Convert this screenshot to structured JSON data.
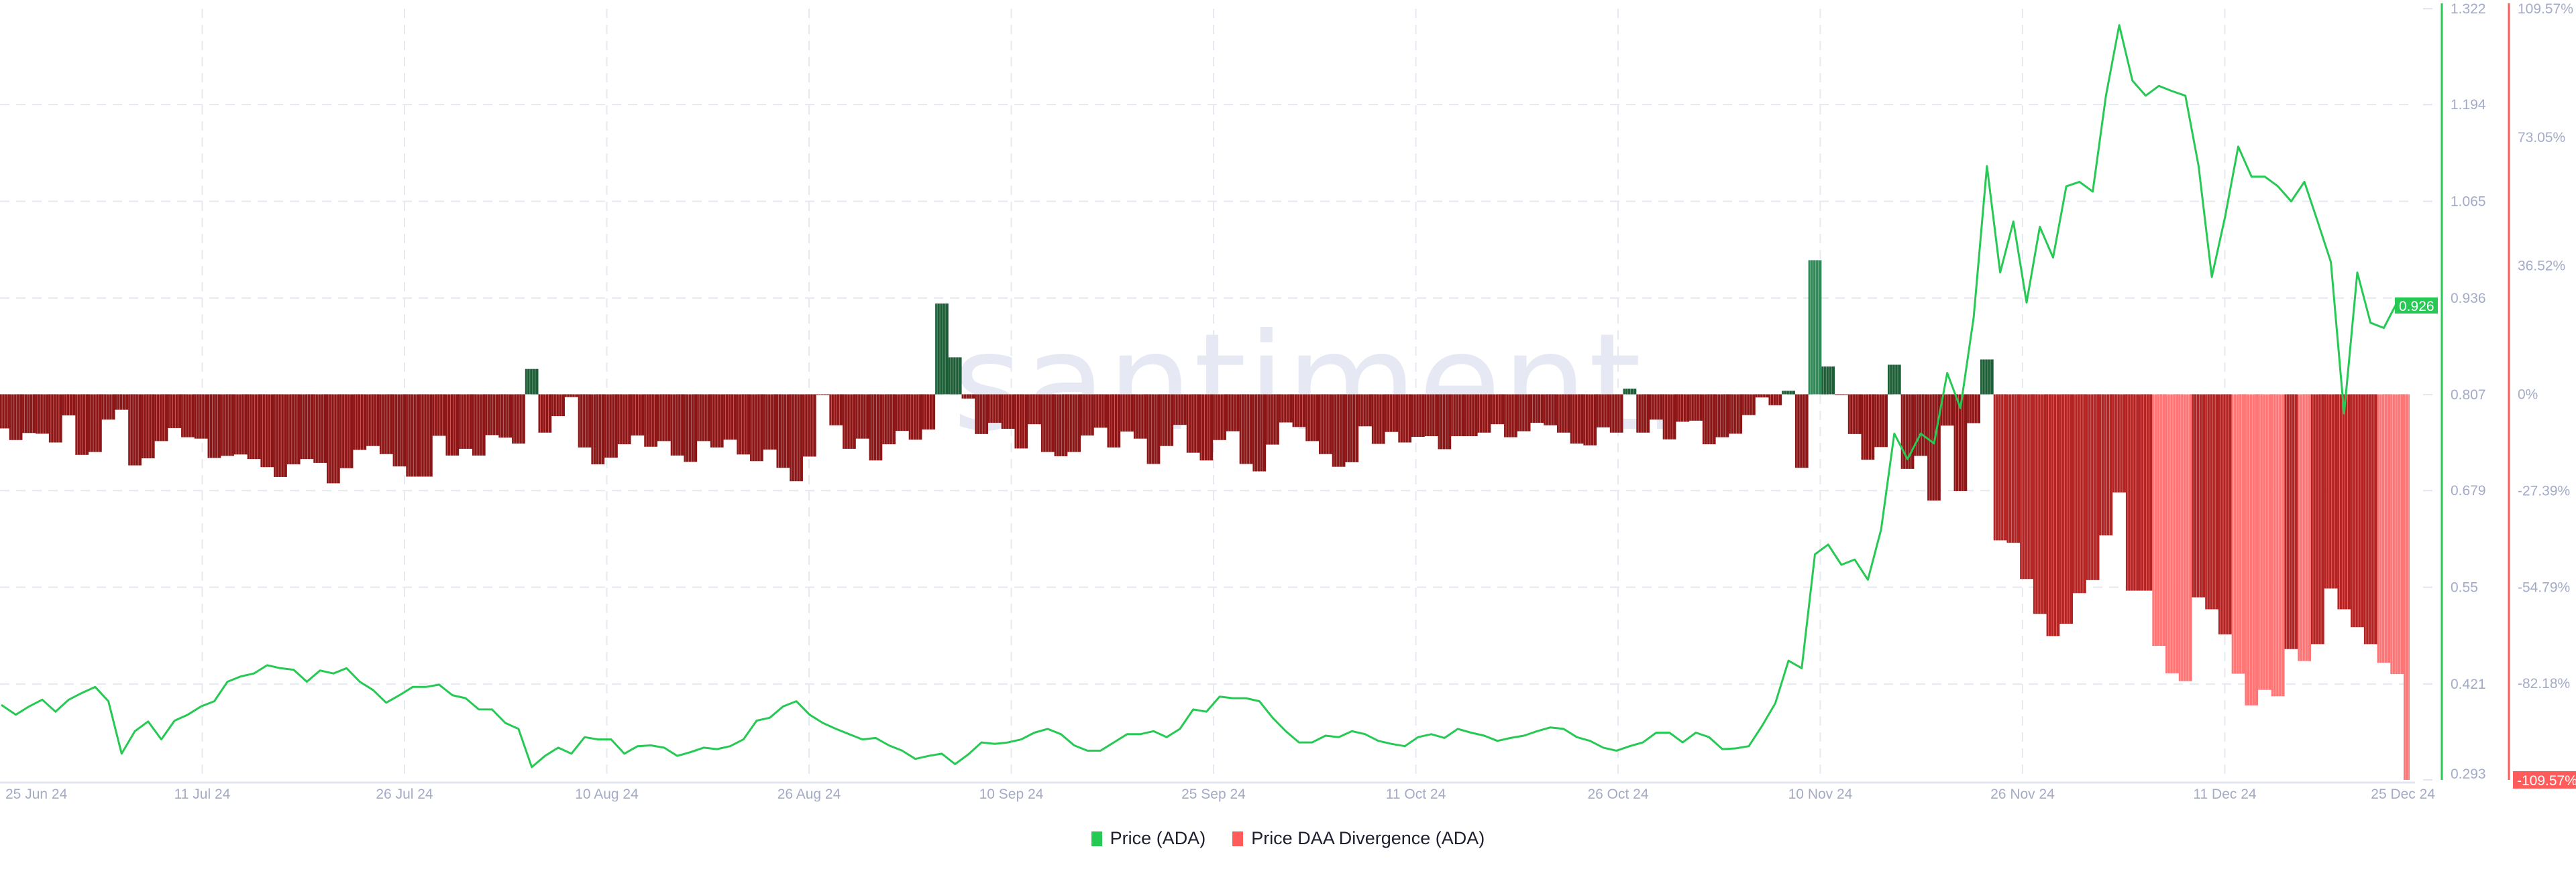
{
  "watermark": "santiment.",
  "legend": [
    {
      "label": "Price (ADA)",
      "color": "#26c953"
    },
    {
      "label": "Price DAA Divergence (ADA)",
      "color": "#ff5b5b"
    }
  ],
  "chart_data": {
    "type": "bar+line",
    "title": "",
    "xlim": [
      "25 Jun 24",
      "25 Dec 24"
    ],
    "x_ticks": [
      "25 Jun 24",
      "11 Jul 24",
      "26 Jul 24",
      "10 Aug 24",
      "26 Aug 24",
      "10 Sep 24",
      "25 Sep 24",
      "11 Oct 24",
      "26 Oct 24",
      "10 Nov 24",
      "26 Nov 24",
      "11 Dec 24",
      "25 Dec 24"
    ],
    "grid": true,
    "legend_position": "bottom",
    "price_axis": {
      "side": "right",
      "color": "#26c953",
      "ylim": [
        0.293,
        1.322
      ],
      "ticks": [
        "1.322",
        "1.194",
        "1.065",
        "0.936",
        "0.807",
        "0.679",
        "0.55",
        "0.421",
        "0.293"
      ],
      "tick_values": [
        1.322,
        1.194,
        1.065,
        0.936,
        0.807,
        0.679,
        0.55,
        0.421,
        0.293
      ],
      "current_value": "0.926"
    },
    "divergence_axis": {
      "side": "right",
      "color": "#ff5b5b",
      "ylim": [
        -109.57,
        109.57
      ],
      "ticks": [
        "109.57%",
        "73.05%",
        "36.52%",
        "0%",
        "-27.39%",
        "-54.79%",
        "-82.18%",
        "-109.57%"
      ],
      "tick_values": [
        109.57,
        73.05,
        36.52,
        0,
        -27.39,
        -54.79,
        -82.18,
        -109.57
      ],
      "current_value": "-109.57%"
    },
    "series": [
      {
        "name": "Price (ADA)",
        "type": "line",
        "color": "#26c953",
        "values": [
          0.393,
          0.38,
          0.391,
          0.4,
          0.384,
          0.4,
          0.409,
          0.417,
          0.398,
          0.328,
          0.358,
          0.371,
          0.347,
          0.372,
          0.38,
          0.391,
          0.398,
          0.424,
          0.431,
          0.435,
          0.446,
          0.442,
          0.44,
          0.424,
          0.439,
          0.435,
          0.442,
          0.424,
          0.413,
          0.396,
          0.406,
          0.417,
          0.417,
          0.42,
          0.406,
          0.402,
          0.387,
          0.387,
          0.369,
          0.361,
          0.31,
          0.325,
          0.336,
          0.328,
          0.35,
          0.347,
          0.347,
          0.328,
          0.338,
          0.339,
          0.336,
          0.325,
          0.33,
          0.336,
          0.334,
          0.338,
          0.347,
          0.372,
          0.376,
          0.391,
          0.398,
          0.38,
          0.369,
          0.361,
          0.354,
          0.347,
          0.349,
          0.339,
          0.332,
          0.321,
          0.325,
          0.328,
          0.314,
          0.327,
          0.343,
          0.341,
          0.343,
          0.347,
          0.356,
          0.361,
          0.354,
          0.339,
          0.332,
          0.332,
          0.343,
          0.354,
          0.354,
          0.358,
          0.35,
          0.361,
          0.387,
          0.384,
          0.404,
          0.402,
          0.402,
          0.398,
          0.376,
          0.358,
          0.343,
          0.343,
          0.352,
          0.35,
          0.358,
          0.354,
          0.345,
          0.341,
          0.338,
          0.35,
          0.354,
          0.349,
          0.361,
          0.356,
          0.352,
          0.345,
          0.349,
          0.352,
          0.358,
          0.363,
          0.361,
          0.35,
          0.345,
          0.336,
          0.332,
          0.338,
          0.343,
          0.356,
          0.356,
          0.343,
          0.356,
          0.35,
          0.334,
          0.335,
          0.338,
          0.365,
          0.395,
          0.452,
          0.442,
          0.594,
          0.607,
          0.58,
          0.587,
          0.56,
          0.627,
          0.755,
          0.721,
          0.755,
          0.742,
          0.836,
          0.789,
          0.91,
          1.112,
          0.97,
          1.038,
          0.93,
          1.031,
          0.99,
          1.085,
          1.091,
          1.078,
          1.206,
          1.3,
          1.226,
          1.206,
          1.219,
          1.212,
          1.206,
          1.112,
          0.964,
          1.044,
          1.138,
          1.098,
          1.098,
          1.085,
          1.065,
          1.091,
          1.038,
          0.984,
          0.782,
          0.97,
          0.903,
          0.896,
          0.93,
          0.926
        ]
      },
      {
        "name": "Price DAA Divergence (ADA)",
        "type": "bar",
        "unit": "%",
        "colors": {
          "negative": "#8e1515",
          "negative_mid": "#b52222",
          "negative_light": "#ff7474",
          "positive": "#1c5e35",
          "positive_mid": "#2e8b57"
        },
        "mid_ranges": [
          [
            151,
            162
          ],
          [
            166,
            168
          ],
          [
            173,
            173
          ],
          [
            175,
            179
          ]
        ],
        "light_ranges": [
          [
            163,
            165
          ],
          [
            169,
            172
          ],
          [
            174,
            174
          ],
          [
            180,
            182
          ]
        ],
        "positive_mid_index": [
          137
        ],
        "values": [
          -9.7,
          -13.0,
          -11.0,
          -11.2,
          -13.7,
          -6.0,
          -17.2,
          -16.4,
          -7.2,
          -4.4,
          -20.2,
          -18.2,
          -13.3,
          -9.6,
          -12.2,
          -12.6,
          -18.1,
          -17.5,
          -17.1,
          -18.4,
          -20.7,
          -23.5,
          -19.9,
          -18.4,
          -19.5,
          -25.3,
          -21.0,
          -15.8,
          -14.7,
          -17.0,
          -20.5,
          -23.4,
          -23.4,
          -11.8,
          -17.4,
          -15.5,
          -17.4,
          -11.6,
          -12.3,
          -14.0,
          7.2,
          -10.9,
          -6.2,
          -0.8,
          -15.1,
          -19.9,
          -18.0,
          -14.2,
          -11.7,
          -14.9,
          -13.3,
          -17.4,
          -19.2,
          -13.3,
          -15.1,
          -12.9,
          -17.1,
          -19.0,
          -15.7,
          -20.9,
          -24.7,
          -17.7,
          -0.2,
          -8.8,
          -15.5,
          -12.6,
          -18.8,
          -14.2,
          -10.4,
          -12.9,
          -10.0,
          25.8,
          10.5,
          -1.2,
          -11.3,
          -8.1,
          -9.8,
          -15.4,
          -8.5,
          -16.4,
          -17.6,
          -16.4,
          -11.7,
          -9.5,
          -15.1,
          -10.6,
          -12.6,
          -19.8,
          -14.7,
          -8.7,
          -16.6,
          -18.8,
          -13.0,
          -10.5,
          -19.8,
          -21.9,
          -14.3,
          -8.0,
          -9.3,
          -13.3,
          -17.0,
          -20.6,
          -19.3,
          -9.1,
          -14.1,
          -10.7,
          -13.7,
          -12.1,
          -11.9,
          -15.6,
          -11.9,
          -11.9,
          -10.9,
          -8.5,
          -12.2,
          -10.5,
          -8.1,
          -8.8,
          -10.9,
          -14.0,
          -14.5,
          -9.4,
          -10.9,
          1.6,
          -10.9,
          -7.2,
          -12.8,
          -7.8,
          -7.5,
          -14.2,
          -12.2,
          -11.2,
          -5.9,
          -0.9,
          -3.1,
          1.0,
          -20.9,
          38.1,
          7.9,
          -0.1,
          -11.3,
          -18.6,
          -15.0,
          8.4,
          -21.2,
          -17.5,
          -30.2,
          -8.9,
          -27.5,
          -8.2,
          9.9,
          -41.5,
          -42.2,
          -52.5,
          -62.4,
          -68.7,
          -65.2,
          -56.5,
          -52.8,
          -40.1,
          -27.9,
          -55.8,
          -55.8,
          -71.5,
          -79.3,
          -81.5,
          -57.7,
          -61.1,
          -68.2,
          -79.4,
          -88.4,
          -84.0,
          -85.8,
          -72.4,
          -75.8,
          -71.0,
          -55.2,
          -61.1,
          -66.2,
          -71.0,
          -76.3,
          -79.5,
          -109.57
        ]
      }
    ]
  }
}
